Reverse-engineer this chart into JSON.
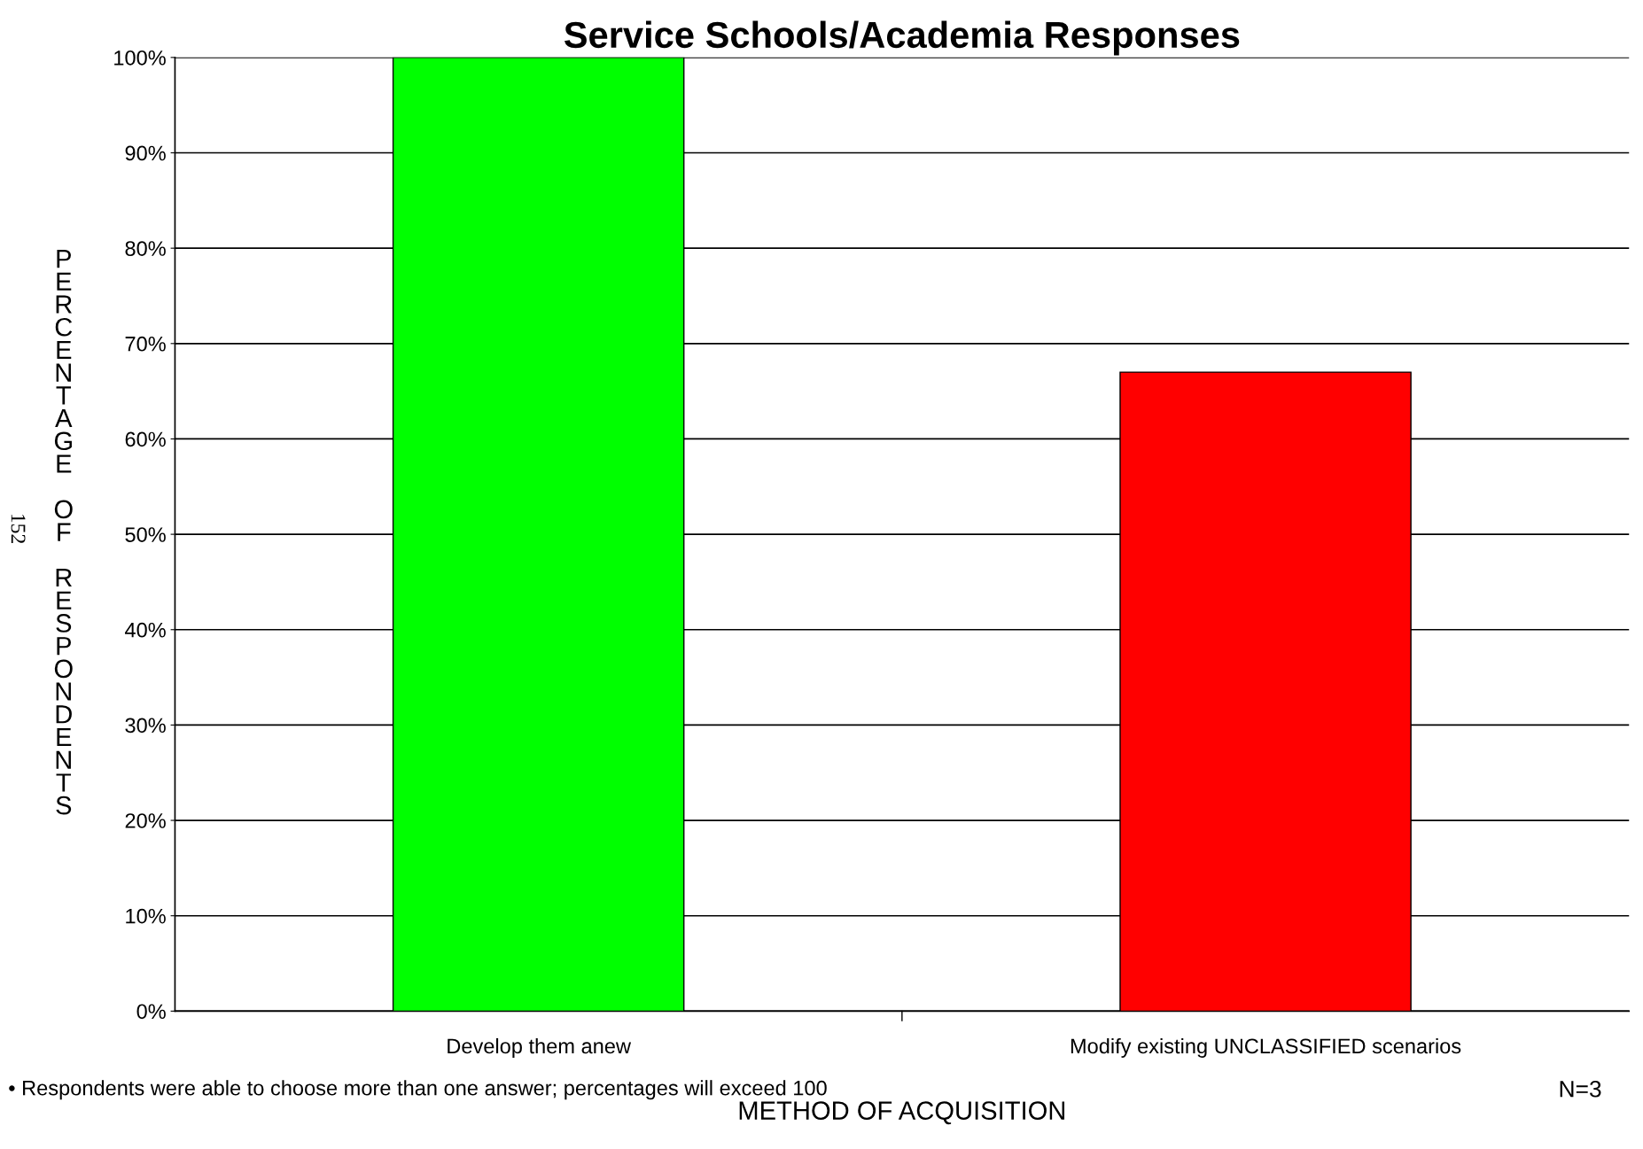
{
  "chart_data": {
    "type": "bar",
    "title": "Service Schools/Academia Responses",
    "xlabel": "METHOD OF ACQUISITION",
    "ylabel": "PERCENTAGE OF RESPONDENTS",
    "categories": [
      "Develop them anew",
      "Modify existing UNCLASSIFIED scenarios"
    ],
    "values": [
      100,
      67
    ],
    "colors": [
      "#00ff00",
      "#ff0000"
    ],
    "ylim": [
      0,
      100
    ],
    "yticks": [
      {
        "value": 0,
        "label": "0%"
      },
      {
        "value": 10,
        "label": "10%"
      },
      {
        "value": 20,
        "label": "20%"
      },
      {
        "value": 30,
        "label": "30%"
      },
      {
        "value": 40,
        "label": "40%"
      },
      {
        "value": 50,
        "label": "50%"
      },
      {
        "value": 60,
        "label": "60%"
      },
      {
        "value": 70,
        "label": "70%"
      },
      {
        "value": 80,
        "label": "80%"
      },
      {
        "value": 90,
        "label": "90%"
      },
      {
        "value": 100,
        "label": "100%"
      }
    ],
    "grid": "y",
    "annotations": [
      "• Respondents were able to choose more than one answer; percentages will exceed 100",
      "N=3",
      "152"
    ]
  }
}
